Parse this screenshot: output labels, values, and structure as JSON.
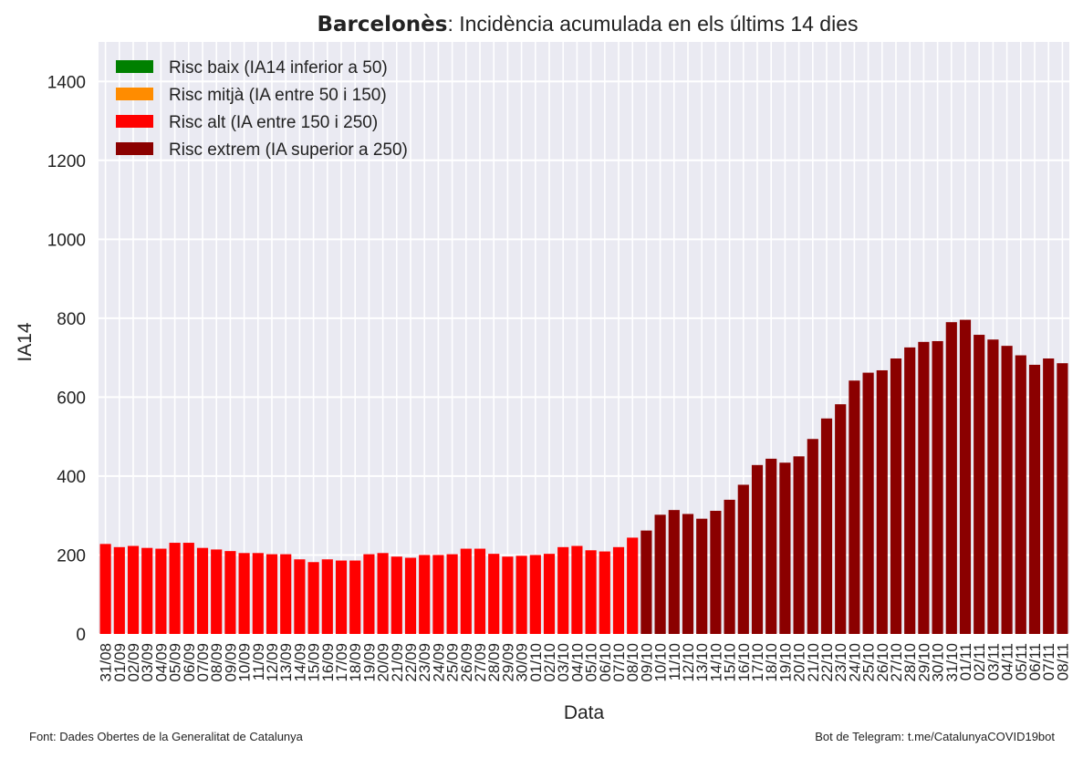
{
  "chart_data": {
    "type": "bar",
    "title_bold": "Barcelonès",
    "title_rest": ": Incidència acumulada en els últims 14 dies",
    "xlabel": "Data",
    "ylabel": "IA14",
    "ylim": [
      0,
      1500
    ],
    "yticks": [
      0,
      200,
      400,
      600,
      800,
      1000,
      1200,
      1400
    ],
    "grid": true,
    "legend_position": "top-left",
    "legend": [
      {
        "label": "Risc baix (IA14 inferior a 50)",
        "color": "#008000"
      },
      {
        "label": "Risc mitjà (IA entre 50 i 150)",
        "color": "#FF8C00"
      },
      {
        "label": "Risc alt (IA entre 150 i 250)",
        "color": "#FF0000"
      },
      {
        "label": "Risc extrem (IA superior a 250)",
        "color": "#8B0000"
      }
    ],
    "categories": [
      "31/08",
      "01/09",
      "02/09",
      "03/09",
      "04/09",
      "05/09",
      "06/09",
      "07/09",
      "08/09",
      "09/09",
      "10/09",
      "11/09",
      "12/09",
      "13/09",
      "14/09",
      "15/09",
      "16/09",
      "17/09",
      "18/09",
      "19/09",
      "20/09",
      "21/09",
      "22/09",
      "23/09",
      "24/09",
      "25/09",
      "26/09",
      "27/09",
      "28/09",
      "29/09",
      "30/09",
      "01/10",
      "02/10",
      "03/10",
      "04/10",
      "05/10",
      "06/10",
      "07/10",
      "08/10",
      "09/10",
      "10/10",
      "11/10",
      "12/10",
      "13/10",
      "14/10",
      "15/10",
      "16/10",
      "17/10",
      "18/10",
      "19/10",
      "20/10",
      "21/10",
      "22/10",
      "23/10",
      "24/10",
      "25/10",
      "26/10",
      "27/10",
      "28/10",
      "29/10",
      "30/10",
      "31/10",
      "01/11",
      "02/11",
      "03/11",
      "04/11",
      "05/11",
      "06/11",
      "07/11",
      "08/11"
    ],
    "values": [
      228,
      220,
      223,
      218,
      216,
      231,
      231,
      218,
      214,
      210,
      205,
      205,
      202,
      202,
      189,
      182,
      189,
      186,
      186,
      202,
      205,
      196,
      193,
      200,
      200,
      202,
      216,
      216,
      203,
      196,
      198,
      200,
      203,
      220,
      223,
      212,
      209,
      220,
      244,
      262,
      302,
      314,
      304,
      292,
      312,
      340,
      378,
      428,
      444,
      434,
      450,
      494,
      546,
      582,
      642,
      662,
      668,
      698,
      726,
      740,
      742,
      790,
      796,
      758,
      746,
      730,
      706,
      682,
      698,
      686
    ]
  },
  "footer": {
    "source": "Font: Dades Obertes de la Generalitat de Catalunya",
    "bot": "Bot de Telegram: t.me/CatalunyaCOVID19bot"
  }
}
